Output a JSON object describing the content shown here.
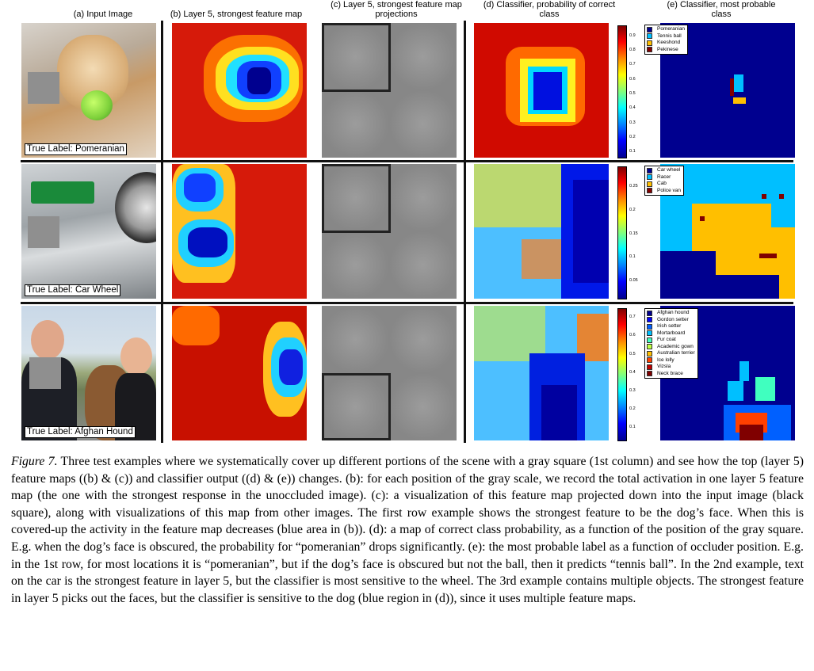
{
  "columns": [
    "(a) Input Image",
    "(b) Layer 5, strongest feature map",
    "(c) Layer 5, strongest feature map projections",
    "(d) Classifier, probability of correct class",
    "(e) Classifier, most probable class"
  ],
  "rows": [
    {
      "true_label": "True Label: Pomeranian",
      "prob_ticks": [
        "0.9",
        "0.8",
        "0.7",
        "0.6",
        "0.5",
        "0.4",
        "0.3",
        "0.2",
        "0.1"
      ],
      "legend": [
        {
          "label": "Pomeranian",
          "color": "#00008f"
        },
        {
          "label": "Tennis ball",
          "color": "#00bfff"
        },
        {
          "label": "Keeshond",
          "color": "#ffbf00"
        },
        {
          "label": "Pekinese",
          "color": "#800000"
        }
      ]
    },
    {
      "true_label": "True Label: Car Wheel",
      "prob_ticks": [
        "0.25",
        "0.2",
        "0.15",
        "0.1",
        "0.05"
      ],
      "legend": [
        {
          "label": "Car wheel",
          "color": "#00008f"
        },
        {
          "label": "Racer",
          "color": "#00bfff"
        },
        {
          "label": "Cab",
          "color": "#ffbf00"
        },
        {
          "label": "Police van",
          "color": "#800000"
        }
      ]
    },
    {
      "true_label": "True Label: Afghan Hound",
      "prob_ticks": [
        "0.7",
        "0.6",
        "0.5",
        "0.4",
        "0.3",
        "0.2",
        "0.1"
      ],
      "legend": [
        {
          "label": "Afghan hound",
          "color": "#00008f"
        },
        {
          "label": "Gordon setter",
          "color": "#0000ff"
        },
        {
          "label": "Irish setter",
          "color": "#0060ff"
        },
        {
          "label": "Mortarboard",
          "color": "#00bfff"
        },
        {
          "label": "Fur coat",
          "color": "#40ffbf"
        },
        {
          "label": "Academic gown",
          "color": "#bfff40"
        },
        {
          "label": "Australian terrier",
          "color": "#ffbf00"
        },
        {
          "label": "Ice lolly",
          "color": "#ff4000"
        },
        {
          "label": "Vizsla",
          "color": "#bf0000"
        },
        {
          "label": "Neck brace",
          "color": "#800000"
        }
      ]
    }
  ],
  "caption": {
    "label": "Figure 7.",
    "text": "Three test examples where we systematically cover up different portions of the scene with a gray square (1st column) and see how the top (layer 5) feature maps ((b) & (c)) and classifier output ((d) & (e)) changes. (b): for each position of the gray scale, we record the total activation in one layer 5 feature map (the one with the strongest response in the unoccluded image). (c): a visualization of this feature map projected down into the input image (black square), along with visualizations of this map from other images. The first row example shows the strongest feature to be the dog’s face. When this is covered-up the activity in the feature map decreases (blue area in (b)). (d): a map of correct class probability, as a function of the position of the gray square. E.g. when the dog’s face is obscured, the probability for “pomeranian” drops significantly. (e): the most probable label as a function of occluder position. E.g. in the 1st row, for most locations it is “pomeranian”, but if the dog’s face is obscured but not the ball, then it predicts “tennis ball”. In the 2nd example, text on the car is the strongest feature in layer 5, but the classifier is most sensitive to the wheel. The 3rd example contains multiple objects. The strongest feature in layer 5 picks out the faces, but the classifier is sensitive to the dog (blue region in (d)), since it uses multiple feature maps."
  }
}
